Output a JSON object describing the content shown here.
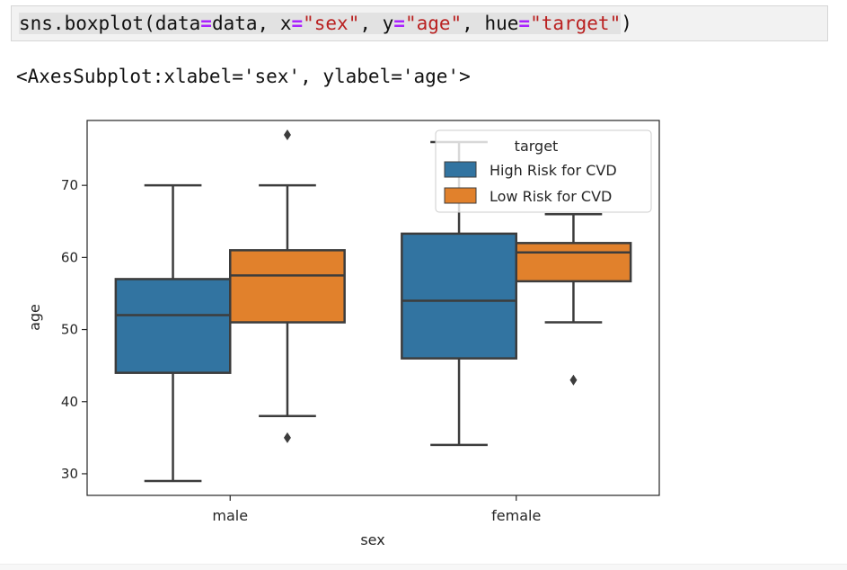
{
  "code_cell": {
    "fn": "sns.boxplot(",
    "k_data": "data",
    "eq": "=",
    "v_data": "data, ",
    "k_x": "x",
    "v_x": "\"sex\"",
    "sep": ", ",
    "k_y": "y",
    "v_y": "\"age\"",
    "k_hue": "hue",
    "v_hue": "\"target\"",
    "close": ")"
  },
  "output_text": "<AxesSubplot:xlabel='sex', ylabel='age'>",
  "chart_data": {
    "type": "box",
    "xlabel": "sex",
    "ylabel": "age",
    "categories": [
      "male",
      "female"
    ],
    "ylim": [
      27,
      79
    ],
    "yticks": [
      30,
      40,
      50,
      60,
      70
    ],
    "legend": {
      "title": "target",
      "placement": "top-right"
    },
    "series": [
      {
        "name": "High Risk for CVD",
        "color": "#3274a1",
        "boxes": [
          {
            "whislo": 29,
            "q1": 44,
            "med": 52,
            "q3": 57,
            "whishi": 70,
            "fliers": []
          },
          {
            "whislo": 34,
            "q1": 46,
            "med": 54,
            "q3": 63.3,
            "whishi": 76,
            "fliers": []
          }
        ]
      },
      {
        "name": "Low Risk for CVD",
        "color": "#e1812c",
        "boxes": [
          {
            "whislo": 38,
            "q1": 51,
            "med": 57.5,
            "q3": 61,
            "whishi": 70,
            "fliers": [
              35,
              77
            ]
          },
          {
            "whislo": 51,
            "q1": 56.7,
            "med": 60.7,
            "q3": 62,
            "whishi": 66,
            "fliers": [
              43
            ]
          }
        ]
      }
    ]
  }
}
